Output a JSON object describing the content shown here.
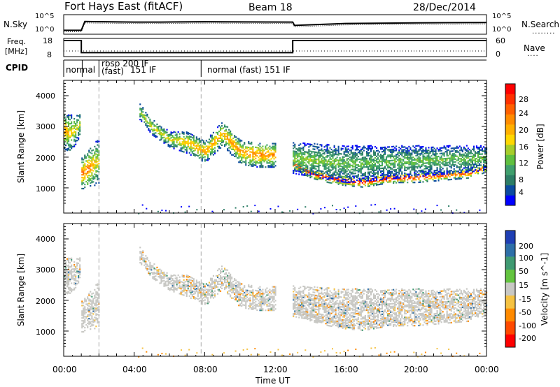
{
  "title": {
    "radar": "Fort Hays East (fitACF)",
    "beam": "Beam 18",
    "date": "28/Dec/2014"
  },
  "header_panels": {
    "nsky": {
      "label": "N.Sky",
      "tick_top": "10^5",
      "tick_bottom": "10^0",
      "right_label": "N.Search",
      "right_tick_top": "10^5",
      "right_tick_bottom": "10^0"
    },
    "freq": {
      "label": "Freq.",
      "unit": "[MHz]",
      "ticks": [
        "18",
        "8"
      ],
      "right_label": "Nave",
      "right_ticks": [
        "60",
        "0"
      ]
    },
    "cpid": {
      "label": "CPID",
      "segments": [
        {
          "start_hour": 0.0,
          "end_hour": 1.05,
          "lines": [
            "normal"
          ]
        },
        {
          "start_hour": 1.05,
          "end_hour": 2.0,
          "lines": [
            "rbsp 200 IF",
            "(fast)"
          ]
        },
        {
          "start_hour": 2.0,
          "end_hour": 7.8,
          "lines": [
            "151 IF"
          ]
        },
        {
          "start_hour": 7.8,
          "end_hour": 24.0,
          "lines": [
            "normal (fast) 151 IF"
          ]
        }
      ]
    }
  },
  "axes": {
    "xlabel": "Time UT",
    "x_tick_labels": [
      "00:00",
      "04:00",
      "08:00",
      "12:00",
      "16:00",
      "20:00",
      "00:00"
    ],
    "ylabel": "Slant Range [km]",
    "y_tick_labels": [
      "1000",
      "2000",
      "3000",
      "4000"
    ]
  },
  "colorbars": {
    "power": {
      "label": "Power [dB]",
      "ticks": [
        "28",
        "24",
        "20",
        "16",
        "12",
        "8",
        "4"
      ],
      "colors": [
        "#0000ff",
        "#0c4ba0",
        "#2c7d66",
        "#3f9f6d",
        "#5fbf3f",
        "#a6cd2a",
        "#ffd700",
        "#ffb000",
        "#ff8c00",
        "#ff6000",
        "#ff3000",
        "#ff0000"
      ]
    },
    "velocity": {
      "label": "Velocity [m s^-1]",
      "ticks": [
        "200",
        "100",
        "50",
        "15",
        "-15",
        "-50",
        "-100",
        "-200"
      ],
      "colors": [
        "#1f3fb4",
        "#2e6fa8",
        "#3f9a72",
        "#63c43f",
        "#c8c8c4",
        "#f5c242",
        "#ff8a00",
        "#ff4a00",
        "#ff0000"
      ]
    }
  },
  "chart_data": [
    {
      "type": "line",
      "name": "N.Sky / N.Search",
      "x": [
        0,
        1,
        1.2,
        4,
        5.5,
        8,
        13,
        13.1,
        16,
        20,
        24
      ],
      "y": [
        0.2,
        0.2,
        0.65,
        0.62,
        0.62,
        0.64,
        0.62,
        0.45,
        0.55,
        0.58,
        0.6
      ],
      "xlim": [
        0,
        24
      ]
    },
    {
      "type": "line",
      "name": "Freq / Nave",
      "x": [
        0,
        1,
        1,
        13,
        13,
        24
      ],
      "y": [
        18,
        18,
        9.3,
        9.3,
        18,
        18
      ],
      "xlim": [
        0,
        24
      ],
      "ylim": [
        8,
        18
      ]
    },
    {
      "type": "heatmap",
      "title": "Power [dB]",
      "xlim": [
        0,
        24
      ],
      "ylim": [
        180,
        4500
      ],
      "xlabel": "Time UT",
      "ylabel": "Slant Range [km]",
      "echo_bands": [
        {
          "x": [
            0.0,
            0.3,
            0.6,
            0.9
          ],
          "center": [
            2900,
            2800,
            2900,
            3100
          ],
          "width": [
            600,
            600,
            500,
            400
          ],
          "peak": [
            20,
            18,
            16,
            14
          ]
        },
        {
          "x": [
            1.0,
            1.3,
            1.7,
            2.0
          ],
          "center": [
            1500,
            1600,
            1800,
            1900
          ],
          "width": [
            500,
            600,
            700,
            700
          ],
          "peak": [
            22,
            22,
            18,
            16
          ]
        },
        {
          "x": [
            4.3,
            5.0,
            6.0,
            7.0,
            8.0,
            9.0,
            9.5,
            10.0,
            11.0,
            12.0
          ],
          "center": [
            3500,
            3000,
            2600,
            2500,
            2200,
            2800,
            2500,
            2200,
            2100,
            2100
          ],
          "width": [
            250,
            250,
            250,
            350,
            350,
            400,
            400,
            400,
            400,
            400
          ],
          "peak": [
            14,
            16,
            16,
            18,
            20,
            18,
            20,
            20,
            22,
            20
          ]
        },
        {
          "x": [
            13.0,
            14.0,
            15.0,
            16.0,
            17.0,
            18.0,
            19.0,
            20.0,
            21.0,
            22.0,
            23.0,
            24.0
          ],
          "center": [
            1800,
            1500,
            1350,
            1250,
            1200,
            1300,
            1350,
            1350,
            1400,
            1450,
            1500,
            1700
          ],
          "width": [
            150,
            150,
            150,
            150,
            150,
            150,
            150,
            150,
            150,
            150,
            150,
            150
          ],
          "peak": [
            26,
            26,
            28,
            28,
            28,
            28,
            28,
            26,
            26,
            24,
            24,
            24
          ]
        },
        {
          "x": [
            13.0,
            16.0,
            20.0,
            24.0
          ],
          "center": [
            2000,
            1800,
            1900,
            2000
          ],
          "width": [
            500,
            600,
            500,
            400
          ],
          "peak": [
            14,
            12,
            12,
            12
          ]
        }
      ]
    },
    {
      "type": "heatmap",
      "title": "Velocity [m s^-1]",
      "xlim": [
        0,
        24
      ],
      "ylim": [
        180,
        4500
      ],
      "xlabel": "Time UT",
      "ylabel": "Slant Range [km]",
      "dominant_velocity": "-15 to 15",
      "ground_scatter_range_km": [
        180,
        450
      ],
      "ground_scatter_velocity": "-50 to -15"
    }
  ]
}
